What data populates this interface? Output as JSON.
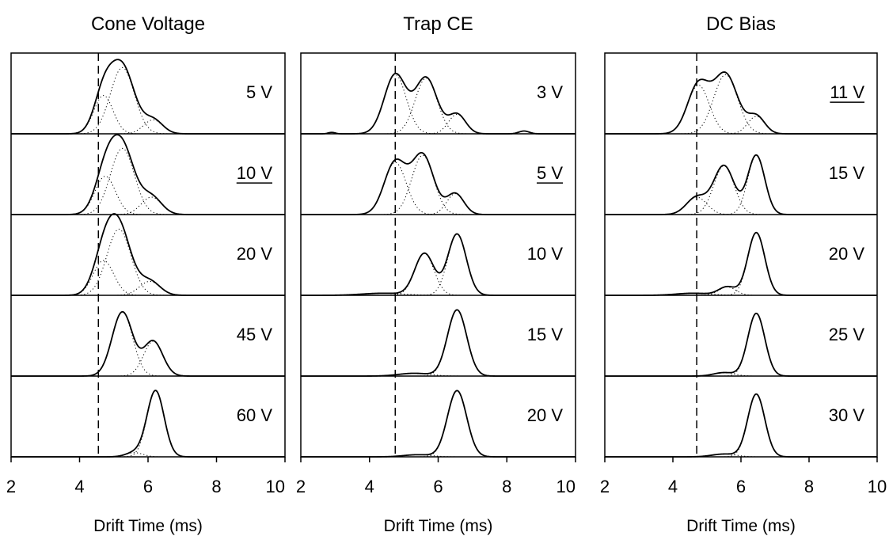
{
  "chart_data": [
    {
      "type": "line",
      "title": "Cone Voltage",
      "xlabel": "Drift Time (ms)",
      "ylabel": "",
      "xlim": [
        2,
        10
      ],
      "xticks": [
        2,
        4,
        6,
        8,
        10
      ],
      "reference_line_x": 4.55,
      "panels": [
        {
          "label": "5 V",
          "underlined": false,
          "peaks": [
            {
              "mu": 4.7,
              "sigma": 0.28,
              "a": 0.55
            },
            {
              "mu": 5.25,
              "sigma": 0.35,
              "a": 0.95
            },
            {
              "mu": 6.15,
              "sigma": 0.28,
              "a": 0.2
            }
          ]
        },
        {
          "label": "10 V",
          "underlined": true,
          "peaks": [
            {
              "mu": 4.75,
              "sigma": 0.3,
              "a": 0.55
            },
            {
              "mu": 5.25,
              "sigma": 0.35,
              "a": 0.95
            },
            {
              "mu": 6.1,
              "sigma": 0.3,
              "a": 0.25
            }
          ]
        },
        {
          "label": "20 V",
          "underlined": false,
          "peaks": [
            {
              "mu": 4.7,
              "sigma": 0.3,
              "a": 0.5
            },
            {
              "mu": 5.15,
              "sigma": 0.35,
              "a": 0.95
            },
            {
              "mu": 6.05,
              "sigma": 0.3,
              "a": 0.2
            }
          ]
        },
        {
          "label": "45 V",
          "underlined": false,
          "peaks": [
            {
              "mu": 5.25,
              "sigma": 0.3,
              "a": 0.92
            },
            {
              "mu": 6.15,
              "sigma": 0.28,
              "a": 0.5
            }
          ]
        },
        {
          "label": "60 V",
          "underlined": false,
          "peaks": [
            {
              "mu": 5.6,
              "sigma": 0.25,
              "a": 0.06
            },
            {
              "mu": 6.22,
              "sigma": 0.25,
              "a": 0.95
            }
          ]
        }
      ]
    },
    {
      "type": "line",
      "title": "Trap CE",
      "xlabel": "Drift Time (ms)",
      "ylabel": "",
      "xlim": [
        2,
        10
      ],
      "xticks": [
        2,
        4,
        6,
        8,
        10
      ],
      "reference_line_x": 4.75,
      "panels": [
        {
          "label": "3 V",
          "underlined": false,
          "peaks": [
            {
              "mu": 2.9,
              "sigma": 0.1,
              "a": 0.02
            },
            {
              "mu": 4.75,
              "sigma": 0.32,
              "a": 0.85
            },
            {
              "mu": 5.65,
              "sigma": 0.32,
              "a": 0.8
            },
            {
              "mu": 6.55,
              "sigma": 0.25,
              "a": 0.28
            },
            {
              "mu": 8.5,
              "sigma": 0.15,
              "a": 0.04
            }
          ]
        },
        {
          "label": "5 V",
          "underlined": true,
          "peaks": [
            {
              "mu": 4.75,
              "sigma": 0.32,
              "a": 0.75
            },
            {
              "mu": 5.55,
              "sigma": 0.32,
              "a": 0.85
            },
            {
              "mu": 6.5,
              "sigma": 0.25,
              "a": 0.3
            }
          ]
        },
        {
          "label": "10 V",
          "underlined": false,
          "peaks": [
            {
              "mu": 4.4,
              "sigma": 0.6,
              "a": 0.03
            },
            {
              "mu": 5.6,
              "sigma": 0.28,
              "a": 0.6
            },
            {
              "mu": 6.55,
              "sigma": 0.27,
              "a": 0.88
            }
          ]
        },
        {
          "label": "15 V",
          "underlined": false,
          "peaks": [
            {
              "mu": 5.3,
              "sigma": 0.45,
              "a": 0.04
            },
            {
              "mu": 6.55,
              "sigma": 0.28,
              "a": 0.95
            }
          ]
        },
        {
          "label": "20 V",
          "underlined": false,
          "peaks": [
            {
              "mu": 5.4,
              "sigma": 0.4,
              "a": 0.03
            },
            {
              "mu": 6.55,
              "sigma": 0.28,
              "a": 0.95
            }
          ]
        }
      ]
    },
    {
      "type": "line",
      "title": "DC Bias",
      "xlabel": "Drift Time (ms)",
      "ylabel": "",
      "xlim": [
        2,
        10
      ],
      "xticks": [
        2,
        4,
        6,
        8,
        10
      ],
      "reference_line_x": 4.7,
      "panels": [
        {
          "label": "11 V",
          "underlined": true,
          "peaks": [
            {
              "mu": 4.75,
              "sigma": 0.32,
              "a": 0.7
            },
            {
              "mu": 5.55,
              "sigma": 0.35,
              "a": 0.85
            },
            {
              "mu": 6.45,
              "sigma": 0.25,
              "a": 0.25
            }
          ]
        },
        {
          "label": "15 V",
          "underlined": false,
          "peaks": [
            {
              "mu": 4.7,
              "sigma": 0.3,
              "a": 0.25
            },
            {
              "mu": 5.5,
              "sigma": 0.3,
              "a": 0.7
            },
            {
              "mu": 6.45,
              "sigma": 0.25,
              "a": 0.85
            }
          ]
        },
        {
          "label": "20 V",
          "underlined": false,
          "peaks": [
            {
              "mu": 4.6,
              "sigma": 0.5,
              "a": 0.03
            },
            {
              "mu": 5.6,
              "sigma": 0.25,
              "a": 0.12
            },
            {
              "mu": 6.45,
              "sigma": 0.25,
              "a": 0.9
            }
          ]
        },
        {
          "label": "25 V",
          "underlined": false,
          "peaks": [
            {
              "mu": 5.5,
              "sigma": 0.3,
              "a": 0.05
            },
            {
              "mu": 6.45,
              "sigma": 0.25,
              "a": 0.9
            }
          ]
        },
        {
          "label": "30 V",
          "underlined": false,
          "peaks": [
            {
              "mu": 5.5,
              "sigma": 0.35,
              "a": 0.04
            },
            {
              "mu": 6.45,
              "sigma": 0.25,
              "a": 0.9
            }
          ]
        }
      ]
    }
  ]
}
